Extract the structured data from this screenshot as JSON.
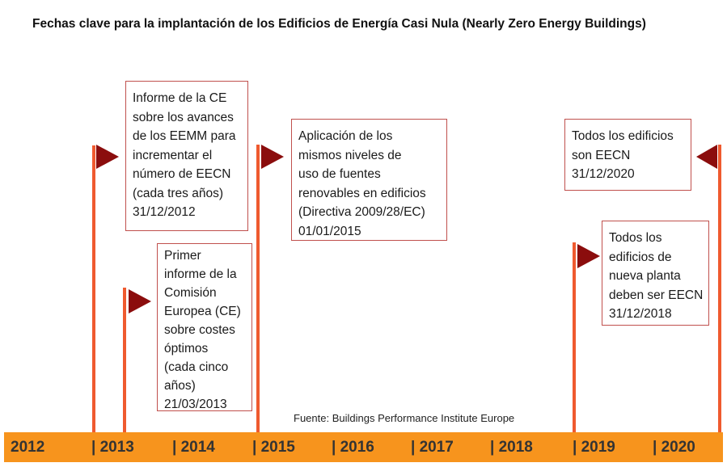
{
  "title": "Fechas clave para la implantación de los Edificios de Energía Casi Nula (Nearly Zero Energy Buildings)",
  "colors": {
    "pole": "#ef5a2f",
    "flag": "#8b0d0d",
    "box_border": "#c0504d",
    "axis_bar": "#f7941d",
    "axis_text": "#333333"
  },
  "milestones": [
    {
      "text": "Informe de la CE\nsobre los avances\nde los EEMM para\nincrementar el\nnúmero de EECN\n(cada tres años)\n31/12/2012"
    },
    {
      "text": "Primer\ninforme de la\nComisión\nEuropea (CE)\nsobre costes\nóptimos\n(cada cinco\naños)\n21/03/2013"
    },
    {
      "text": "Aplicación de los\nmismos niveles de\nuso de fuentes\nrenovables en edificios\n(Directiva 2009/28/EC)\n01/01/2015"
    },
    {
      "text": "Todos los edificios\nson EECN\n31/12/2020"
    },
    {
      "text": "Todos los\nedificios de\nnueva planta\ndeben ser EECN\n31/12/2018"
    }
  ],
  "source": "Fuente: Buildings Performance Institute Europe",
  "axis_labels": [
    "2012",
    "| 2013",
    "| 2014",
    "| 2015",
    "| 2016",
    "| 2017",
    "| 2018",
    "| 2019",
    "| 2020"
  ]
}
